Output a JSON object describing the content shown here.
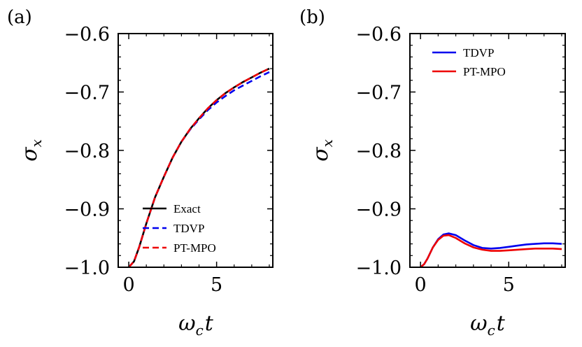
{
  "figure": {
    "panel_a_label": "(a)",
    "panel_b_label": "(b)"
  },
  "chart_data": [
    {
      "id": "a",
      "type": "line",
      "xlabel_main": "ω",
      "xlabel_sub": "c",
      "xlabel_suffix": "t",
      "ylabel_main": "σ",
      "ylabel_sub": "x",
      "xlim": [
        -0.6,
        8.2
      ],
      "ylim": [
        -1.0,
        -0.6
      ],
      "xticks": [
        0,
        5
      ],
      "xtick_labels": [
        "0",
        "5"
      ],
      "yticks": [
        -1.0,
        -0.9,
        -0.8,
        -0.7,
        -0.6
      ],
      "ytick_labels": [
        "−1.0",
        "−0.9",
        "−0.8",
        "−0.7",
        "−0.6"
      ],
      "legend_position": "lower-right",
      "x": [
        0,
        0.3,
        0.6,
        1.0,
        1.5,
        2.0,
        2.5,
        3.0,
        3.5,
        4.0,
        4.5,
        5.0,
        5.5,
        6.0,
        6.5,
        7.0,
        7.5,
        8.0
      ],
      "series": [
        {
          "name": "Exact",
          "color": "#000000",
          "dash": "solid",
          "values": [
            -1.0,
            -0.99,
            -0.965,
            -0.925,
            -0.88,
            -0.845,
            -0.812,
            -0.785,
            -0.763,
            -0.745,
            -0.728,
            -0.714,
            -0.702,
            -0.692,
            -0.683,
            -0.675,
            -0.667,
            -0.66
          ]
        },
        {
          "name": "TDVP",
          "color": "#0000ee",
          "dash": "dashed",
          "values": [
            -1.0,
            -0.99,
            -0.965,
            -0.925,
            -0.88,
            -0.845,
            -0.812,
            -0.785,
            -0.764,
            -0.747,
            -0.731,
            -0.718,
            -0.707,
            -0.697,
            -0.689,
            -0.681,
            -0.673,
            -0.666
          ]
        },
        {
          "name": "PT-MPO",
          "color": "#ee0000",
          "dash": "dashed",
          "values": [
            -1.0,
            -0.99,
            -0.965,
            -0.925,
            -0.88,
            -0.845,
            -0.812,
            -0.785,
            -0.763,
            -0.745,
            -0.728,
            -0.714,
            -0.702,
            -0.692,
            -0.683,
            -0.675,
            -0.667,
            -0.66
          ]
        }
      ]
    },
    {
      "id": "b",
      "type": "line",
      "xlabel_main": "ω",
      "xlabel_sub": "c",
      "xlabel_suffix": "t",
      "ylabel_main": "σ",
      "ylabel_sub": "x",
      "xlim": [
        -0.6,
        8.2
      ],
      "ylim": [
        -1.0,
        -0.6
      ],
      "xticks": [
        0,
        5
      ],
      "xtick_labels": [
        "0",
        "5"
      ],
      "yticks": [
        -1.0,
        -0.9,
        -0.8,
        -0.7,
        -0.6
      ],
      "ytick_labels": [
        "−1.0",
        "−0.9",
        "−0.8",
        "−0.7",
        "−0.6"
      ],
      "legend_position": "top-right",
      "x": [
        0,
        0.2,
        0.4,
        0.7,
        1.0,
        1.3,
        1.6,
        2.0,
        2.5,
        3.0,
        3.5,
        4.0,
        4.5,
        5.0,
        5.5,
        6.0,
        6.5,
        7.0,
        7.5,
        8.0
      ],
      "series": [
        {
          "name": "TDVP",
          "color": "#0000ee",
          "dash": "solid",
          "values": [
            -1.0,
            -0.995,
            -0.985,
            -0.966,
            -0.952,
            -0.944,
            -0.942,
            -0.945,
            -0.954,
            -0.962,
            -0.967,
            -0.968,
            -0.967,
            -0.965,
            -0.963,
            -0.961,
            -0.96,
            -0.959,
            -0.959,
            -0.96
          ]
        },
        {
          "name": "PT-MPO",
          "color": "#ee0000",
          "dash": "solid",
          "values": [
            -1.0,
            -0.995,
            -0.985,
            -0.966,
            -0.953,
            -0.946,
            -0.945,
            -0.95,
            -0.959,
            -0.966,
            -0.97,
            -0.972,
            -0.972,
            -0.971,
            -0.97,
            -0.969,
            -0.968,
            -0.968,
            -0.968,
            -0.969
          ]
        }
      ]
    }
  ]
}
